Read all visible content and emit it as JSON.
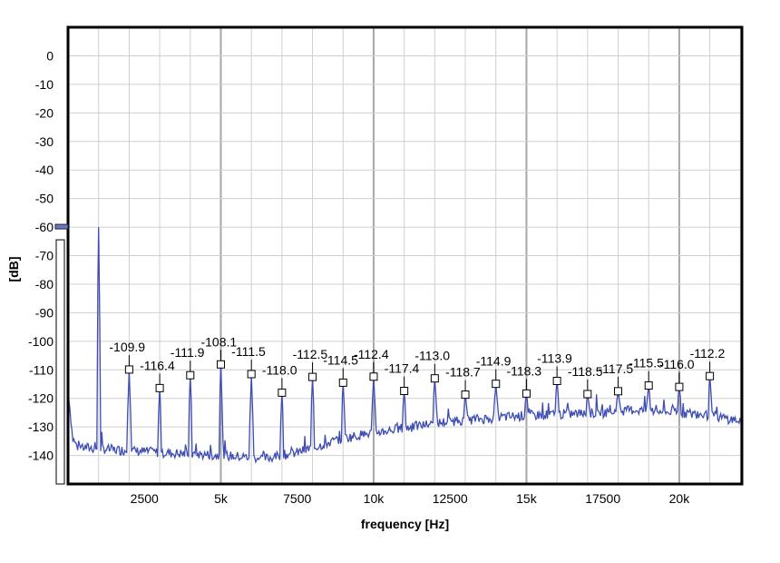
{
  "chart_data": {
    "type": "line",
    "xlabel": "frequency [Hz]",
    "ylabel": "[dB]",
    "xlim": [
      0,
      22050
    ],
    "ylim": [
      -150,
      10
    ],
    "x_ticks": [
      {
        "value": 2500,
        "label": "2500"
      },
      {
        "value": 5000,
        "label": "5k"
      },
      {
        "value": 7500,
        "label": "7500"
      },
      {
        "value": 10000,
        "label": "10k"
      },
      {
        "value": 12500,
        "label": "12500"
      },
      {
        "value": 15000,
        "label": "15k"
      },
      {
        "value": 17500,
        "label": "17500"
      },
      {
        "value": 20000,
        "label": "20k"
      }
    ],
    "y_ticks": [
      {
        "value": 0,
        "label": "0"
      },
      {
        "value": -10,
        "label": "-10"
      },
      {
        "value": -20,
        "label": "-20"
      },
      {
        "value": -30,
        "label": "-30"
      },
      {
        "value": -40,
        "label": "-40"
      },
      {
        "value": -50,
        "label": "-50"
      },
      {
        "value": -60,
        "label": "-60"
      },
      {
        "value": -70,
        "label": "-70"
      },
      {
        "value": -80,
        "label": "-80"
      },
      {
        "value": -90,
        "label": "-90"
      },
      {
        "value": -100,
        "label": "-100"
      },
      {
        "value": -110,
        "label": "-110"
      },
      {
        "value": -120,
        "label": "-120"
      },
      {
        "value": -130,
        "label": "-130"
      },
      {
        "value": -140,
        "label": "-140"
      }
    ],
    "grid": true,
    "grid_x_step": 1000,
    "grid_y_step": 10,
    "series_color": "#3d4db3",
    "fundamental": {
      "x": 1000,
      "y": -60
    },
    "noise_floor": [
      {
        "x": 0,
        "y": -116
      },
      {
        "x": 150,
        "y": -134
      },
      {
        "x": 300,
        "y": -137
      },
      {
        "x": 1500,
        "y": -138
      },
      {
        "x": 3000,
        "y": -139
      },
      {
        "x": 5000,
        "y": -140
      },
      {
        "x": 6500,
        "y": -141
      },
      {
        "x": 7500,
        "y": -139
      },
      {
        "x": 9000,
        "y": -134
      },
      {
        "x": 10000,
        "y": -132
      },
      {
        "x": 12500,
        "y": -128
      },
      {
        "x": 15000,
        "y": -126
      },
      {
        "x": 17500,
        "y": -125
      },
      {
        "x": 18500,
        "y": -124
      },
      {
        "x": 20000,
        "y": -125
      },
      {
        "x": 21000,
        "y": -126
      },
      {
        "x": 22050,
        "y": -128
      }
    ],
    "harmonics": [
      {
        "x": 2000,
        "y": -109.9,
        "label": "-109.9"
      },
      {
        "x": 3000,
        "y": -116.4,
        "label": "-116.4"
      },
      {
        "x": 4000,
        "y": -111.9,
        "label": "-111.9"
      },
      {
        "x": 5000,
        "y": -108.1,
        "label": "-108.1"
      },
      {
        "x": 6000,
        "y": -111.5,
        "label": "-111.5"
      },
      {
        "x": 7000,
        "y": -118.0,
        "label": "-118.0"
      },
      {
        "x": 8000,
        "y": -112.5,
        "label": "-112.5"
      },
      {
        "x": 9000,
        "y": -114.5,
        "label": "-114.5"
      },
      {
        "x": 10000,
        "y": -112.4,
        "label": "-112.4"
      },
      {
        "x": 11000,
        "y": -117.4,
        "label": "-117.4"
      },
      {
        "x": 12000,
        "y": -113.0,
        "label": "-113.0"
      },
      {
        "x": 13000,
        "y": -118.7,
        "label": "-118.7"
      },
      {
        "x": 14000,
        "y": -114.9,
        "label": "-114.9"
      },
      {
        "x": 15000,
        "y": -118.3,
        "label": "-118.3"
      },
      {
        "x": 16000,
        "y": -113.9,
        "label": "-113.9"
      },
      {
        "x": 17000,
        "y": -118.5,
        "label": "-118.5"
      },
      {
        "x": 18000,
        "y": -117.5,
        "label": "-117.5"
      },
      {
        "x": 19000,
        "y": -115.5,
        "label": "-115.5"
      },
      {
        "x": 20000,
        "y": -116.0,
        "label": "-116.0"
      },
      {
        "x": 21000,
        "y": -112.2,
        "label": "-112.2"
      }
    ]
  }
}
